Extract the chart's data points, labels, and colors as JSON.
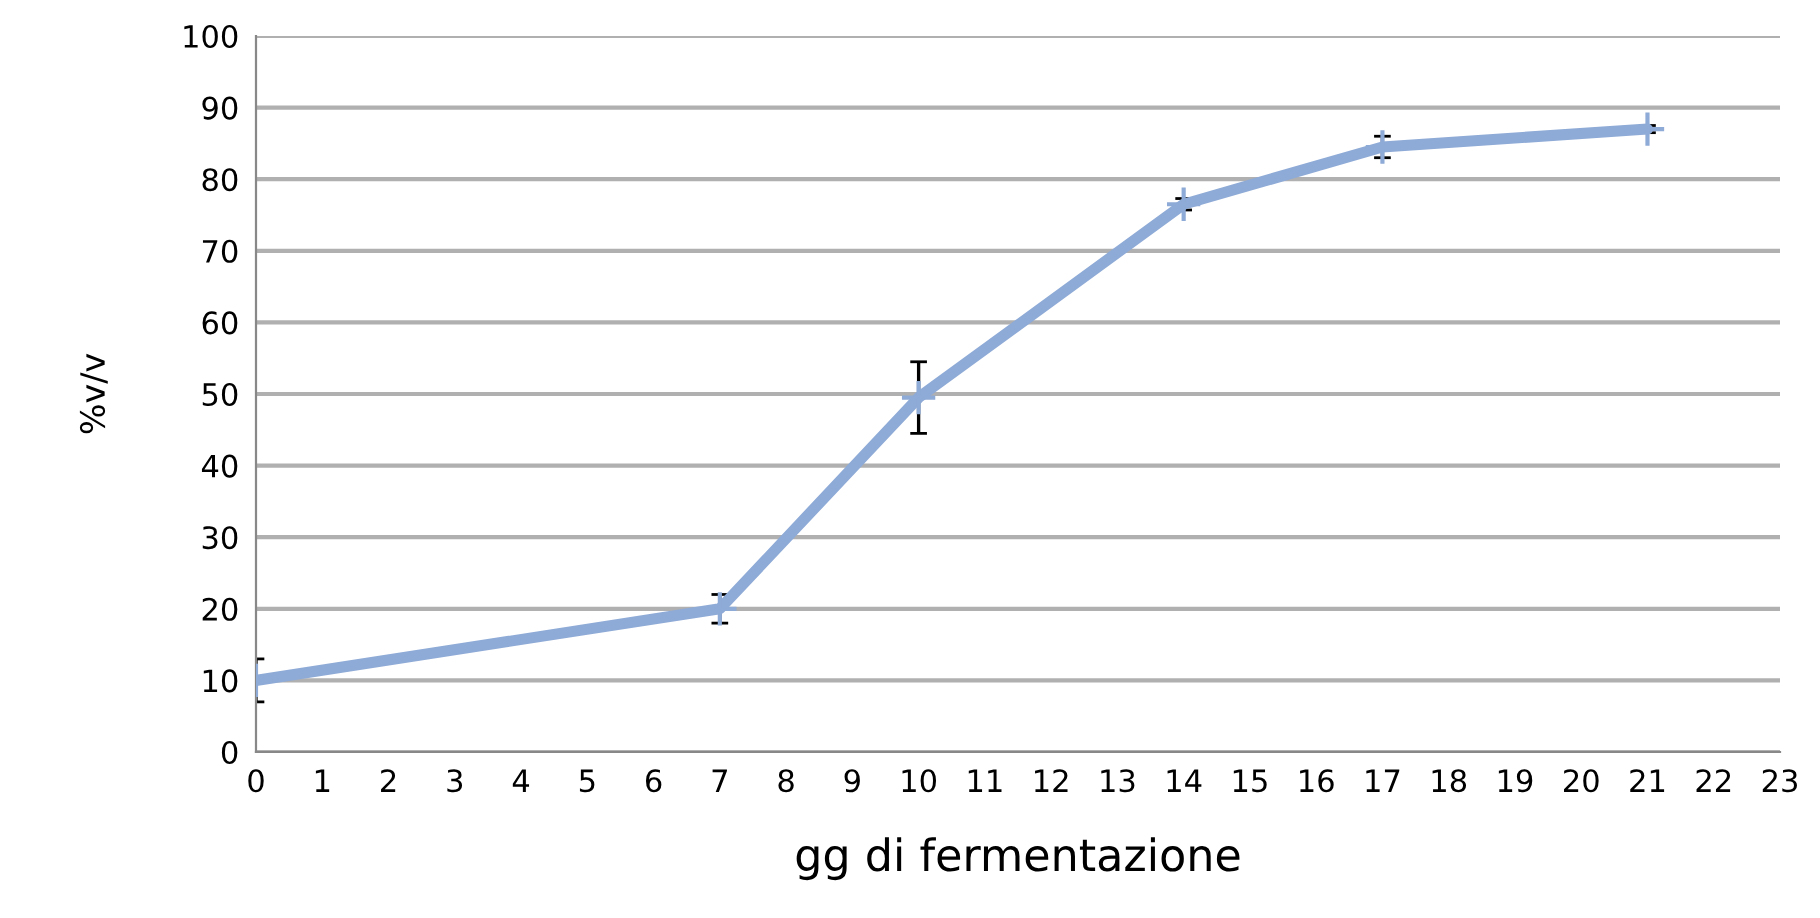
{
  "chart_data": {
    "type": "line",
    "ylabel": "%v/v",
    "xlabel": "gg di fermentazione",
    "x": [
      0,
      7,
      10,
      14,
      17,
      21
    ],
    "series": [
      {
        "color": "#8eaad6",
        "values": [
          10,
          20,
          49.5,
          76.5,
          84.5,
          87
        ],
        "errors": [
          3,
          2,
          5,
          0.8,
          1.5,
          0.5
        ]
      }
    ],
    "xlim": [
      0,
      23
    ],
    "xticks": [
      0,
      1,
      2,
      3,
      4,
      5,
      6,
      7,
      8,
      9,
      10,
      11,
      12,
      13,
      14,
      15,
      16,
      17,
      18,
      19,
      20,
      21,
      22,
      23
    ],
    "ylim": [
      0,
      100
    ],
    "yticks": [
      0,
      10,
      20,
      30,
      40,
      50,
      60,
      70,
      80,
      90,
      100
    ],
    "grid": "y",
    "marker": "cross",
    "line_style": "solid"
  }
}
